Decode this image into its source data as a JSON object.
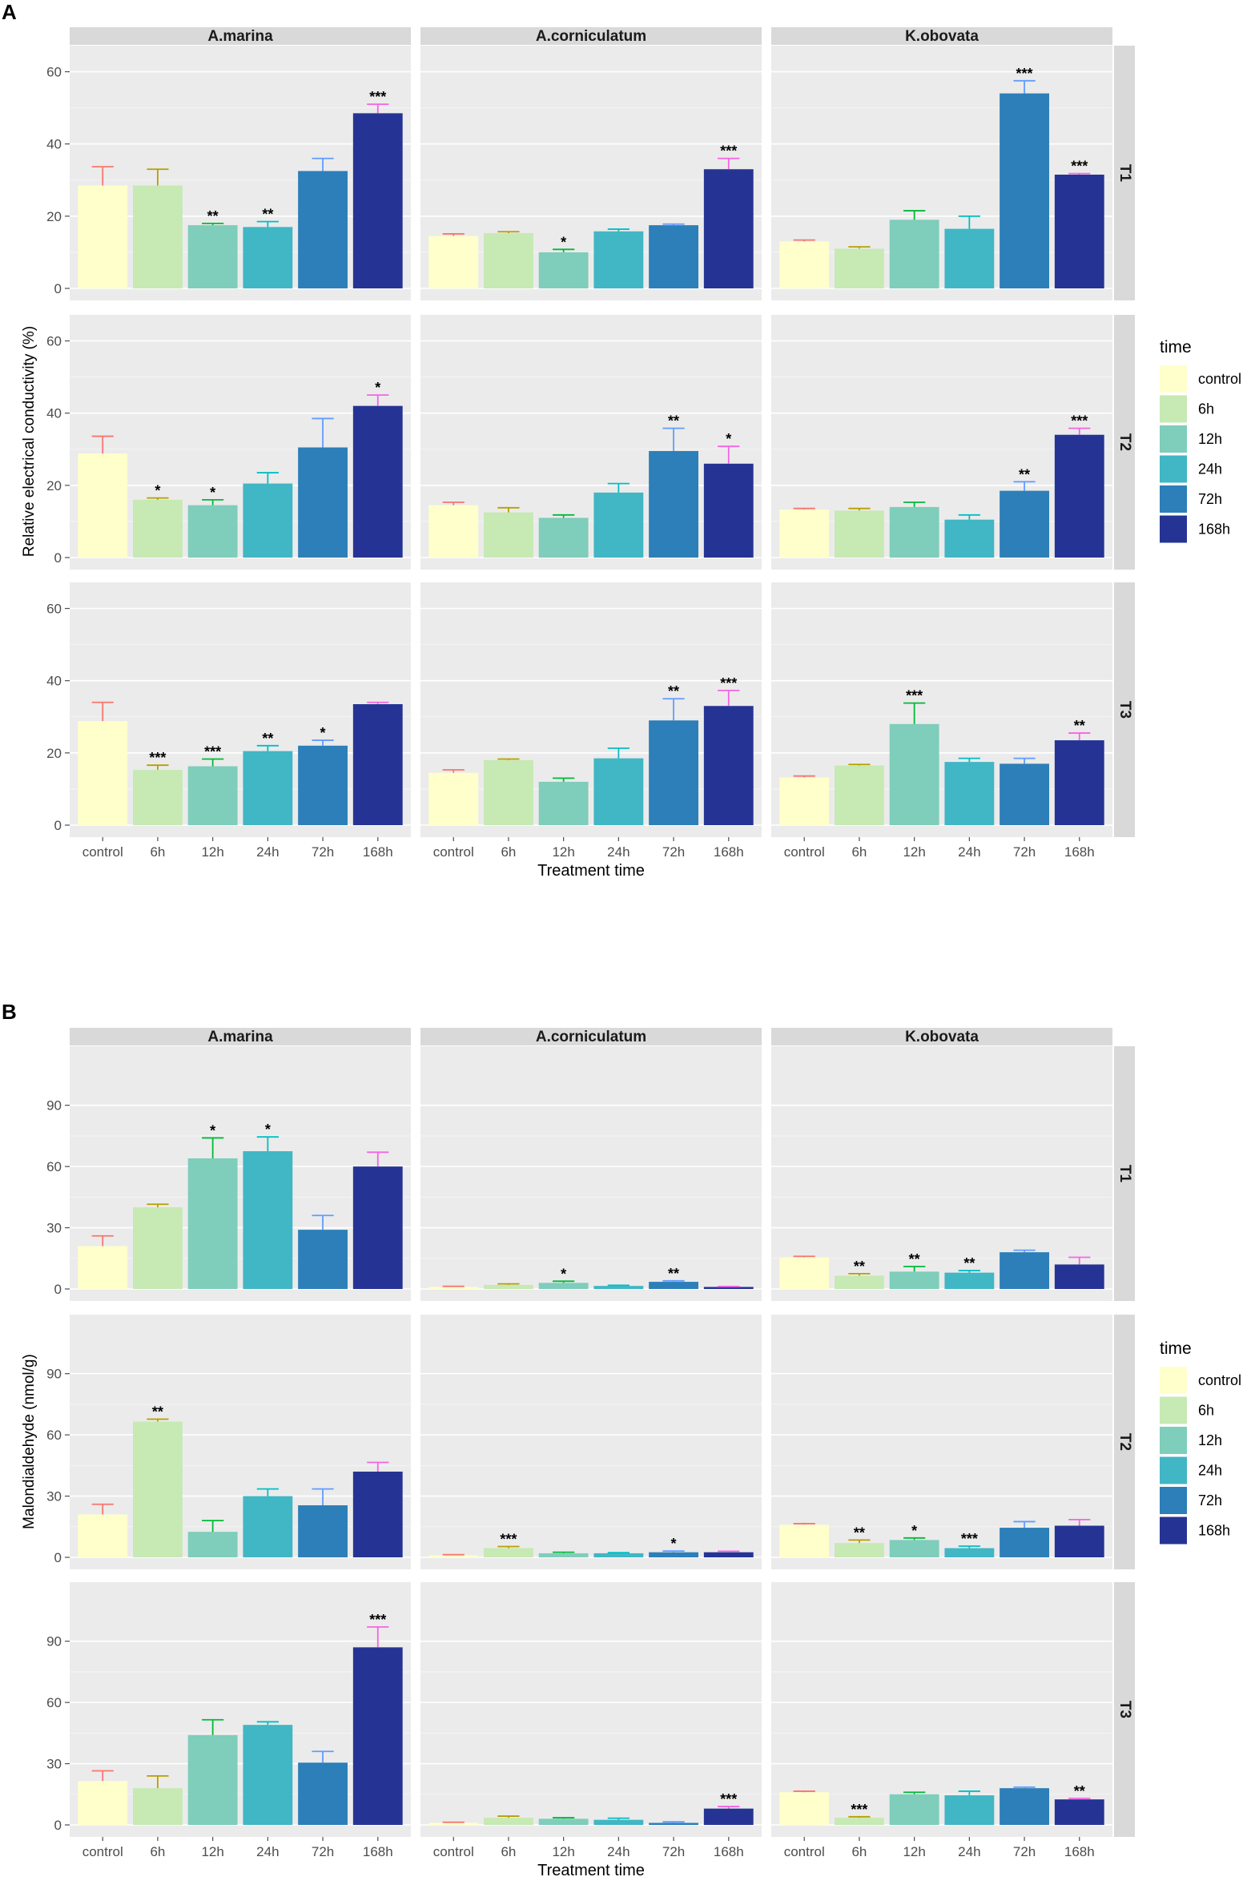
{
  "categories": [
    "control",
    "6h",
    "12h",
    "24h",
    "72h",
    "168h"
  ],
  "colors": {
    "control": "#FFFFCC",
    "6h": "#C7E9B4",
    "12h": "#7FCDBB",
    "24h": "#41B6C4",
    "72h": "#2C7FB8",
    "168h": "#253494"
  },
  "err_colors": {
    "control": "#F8766D",
    "6h": "#B79F00",
    "12h": "#00BA38",
    "24h": "#00BFC4",
    "72h": "#619CFF",
    "168h": "#F564E3"
  },
  "panel_bg": "#EBEBEB",
  "strip_bg": "#D9D9D9",
  "chart_data": [
    {
      "type": "bar",
      "panel_label": "A",
      "ylabel": "Relative electrical conductivity (%)",
      "xlabel": "Treatment time",
      "ylim": [
        0,
        65
      ],
      "yticks": [
        0,
        20,
        40,
        60
      ],
      "species": [
        "A.marina",
        "A.corniculatum",
        "K.obovata"
      ],
      "treatments": [
        "T1",
        "T2",
        "T3"
      ],
      "legend": {
        "title": "time",
        "items": [
          "control",
          "6h",
          "12h",
          "24h",
          "72h",
          "168h"
        ]
      },
      "values": {
        "T1": {
          "A.marina": [
            28.5,
            28.5,
            17.5,
            17,
            32.5,
            48.5
          ],
          "A.corniculatum": [
            14.5,
            15.3,
            10,
            15.8,
            17.5,
            33
          ],
          "K.obovata": [
            13,
            11,
            19,
            16.5,
            54,
            31.5
          ]
        },
        "T2": {
          "A.marina": [
            28.8,
            16,
            14.5,
            20.5,
            30.5,
            42
          ],
          "A.corniculatum": [
            14.5,
            12.5,
            11,
            18,
            29.5,
            26
          ],
          "K.obovata": [
            13.3,
            13,
            14,
            10.5,
            18.5,
            34
          ]
        },
        "T3": {
          "A.marina": [
            28.8,
            15.3,
            16.3,
            20.5,
            22,
            33.5
          ],
          "A.corniculatum": [
            14.5,
            18,
            12,
            18.5,
            29,
            33
          ],
          "K.obovata": [
            13.2,
            16.5,
            28,
            17.5,
            17,
            23.5
          ]
        }
      },
      "errors": {
        "T1": {
          "A.marina": [
            5.2,
            4.5,
            0.5,
            1.5,
            3.5,
            2.5
          ],
          "A.corniculatum": [
            0.6,
            0.4,
            0.8,
            0.6,
            0.3,
            3
          ],
          "K.obovata": [
            0.4,
            0.5,
            2.5,
            3.5,
            3.5,
            0.3
          ]
        },
        "T2": {
          "A.marina": [
            4.8,
            0.5,
            1.5,
            3,
            8,
            3
          ],
          "A.corniculatum": [
            0.8,
            1.3,
            0.8,
            2.5,
            6.3,
            4.8
          ],
          "K.obovata": [
            0.3,
            0.6,
            1.3,
            1.3,
            2.5,
            1.8
          ]
        },
        "T3": {
          "A.marina": [
            5.2,
            1.3,
            2,
            1.5,
            1.5,
            0.5
          ],
          "A.corniculatum": [
            0.8,
            0.3,
            1,
            2.8,
            6,
            4.3
          ],
          "K.obovata": [
            0.4,
            0.3,
            5.8,
            1,
            1.5,
            2
          ]
        }
      },
      "significance": {
        "T1": {
          "A.marina": [
            "",
            "",
            "**",
            "**",
            "",
            "***"
          ],
          "A.corniculatum": [
            "",
            "",
            "*",
            "",
            "",
            "***"
          ],
          "K.obovata": [
            "",
            "",
            "",
            "",
            "***",
            "***"
          ]
        },
        "T2": {
          "A.marina": [
            "",
            "*",
            "*",
            "",
            "",
            "*"
          ],
          "A.corniculatum": [
            "",
            "",
            "",
            "",
            "**",
            "*"
          ],
          "K.obovata": [
            "",
            "",
            "",
            "",
            "**",
            "***"
          ]
        },
        "T3": {
          "A.marina": [
            "",
            "***",
            "***",
            "**",
            "*",
            ""
          ],
          "A.corniculatum": [
            "",
            "",
            "",
            "",
            "**",
            "***"
          ],
          "K.obovata": [
            "",
            "",
            "***",
            "",
            "",
            "**"
          ]
        }
      }
    },
    {
      "type": "bar",
      "panel_label": "B",
      "ylabel": "Malondialdehyde (nmol/g)",
      "xlabel": "Treatment time",
      "ylim": [
        0,
        115
      ],
      "yticks": [
        0,
        30,
        60,
        90
      ],
      "species": [
        "A.marina",
        "A.corniculatum",
        "K.obovata"
      ],
      "treatments": [
        "T1",
        "T2",
        "T3"
      ],
      "legend": {
        "title": "time",
        "items": [
          "control",
          "6h",
          "12h",
          "24h",
          "72h",
          "168h"
        ]
      },
      "values": {
        "T1": {
          "A.marina": [
            21,
            40,
            64,
            67.5,
            29,
            60
          ],
          "A.corniculatum": [
            1,
            2,
            3,
            1.5,
            3.5,
            1
          ],
          "K.obovata": [
            15.5,
            6.5,
            8.5,
            8,
            18,
            12
          ]
        },
        "T2": {
          "A.marina": [
            21,
            66.5,
            12.5,
            30,
            25.5,
            42
          ],
          "A.corniculatum": [
            1,
            4.5,
            2,
            2,
            2.5,
            2.5
          ],
          "K.obovata": [
            16,
            7,
            8.5,
            4.5,
            14.5,
            15.5
          ]
        },
        "T3": {
          "A.marina": [
            21.5,
            18,
            44,
            49,
            30.5,
            87
          ],
          "A.corniculatum": [
            1,
            3.5,
            3,
            2.5,
            1,
            8
          ],
          "K.obovata": [
            16,
            3.5,
            15,
            14.5,
            18,
            12.5
          ]
        }
      },
      "errors": {
        "T1": {
          "A.marina": [
            5,
            1.5,
            10,
            7,
            7,
            7
          ],
          "A.corniculatum": [
            0.3,
            0.5,
            0.8,
            0.3,
            0.5,
            0.2
          ],
          "K.obovata": [
            0.5,
            1,
            2.5,
            1,
            1,
            3.5
          ]
        },
        "T2": {
          "A.marina": [
            5,
            1.2,
            5.5,
            3.5,
            8,
            4.5
          ],
          "A.corniculatum": [
            0.3,
            0.8,
            0.5,
            0.3,
            0.6,
            0.5
          ],
          "K.obovata": [
            0.5,
            1.5,
            1,
            1,
            3,
            3
          ]
        },
        "T3": {
          "A.marina": [
            5,
            6,
            7.5,
            1.5,
            5.5,
            10
          ],
          "A.corniculatum": [
            0.3,
            0.8,
            0.5,
            0.8,
            0.5,
            1
          ],
          "K.obovata": [
            0.5,
            0.5,
            1,
            2,
            0.5,
            0.5
          ]
        }
      },
      "significance": {
        "T1": {
          "A.marina": [
            "",
            "",
            "*",
            "*",
            "",
            ""
          ],
          "A.corniculatum": [
            "",
            "",
            "*",
            "",
            "**",
            ""
          ],
          "K.obovata": [
            "",
            "**",
            "**",
            "**",
            "",
            ""
          ]
        },
        "T2": {
          "A.marina": [
            "",
            "**",
            "",
            "",
            "",
            ""
          ],
          "A.corniculatum": [
            "",
            "***",
            "",
            "",
            "*",
            ""
          ],
          "K.obovata": [
            "",
            "**",
            "*",
            "***",
            "",
            ""
          ]
        },
        "T3": {
          "A.marina": [
            "",
            "",
            "",
            "",
            "",
            "***"
          ],
          "A.corniculatum": [
            "",
            "",
            "",
            "",
            "",
            "***"
          ],
          "K.obovata": [
            "",
            "***",
            "",
            "",
            "",
            "**"
          ]
        }
      }
    }
  ]
}
